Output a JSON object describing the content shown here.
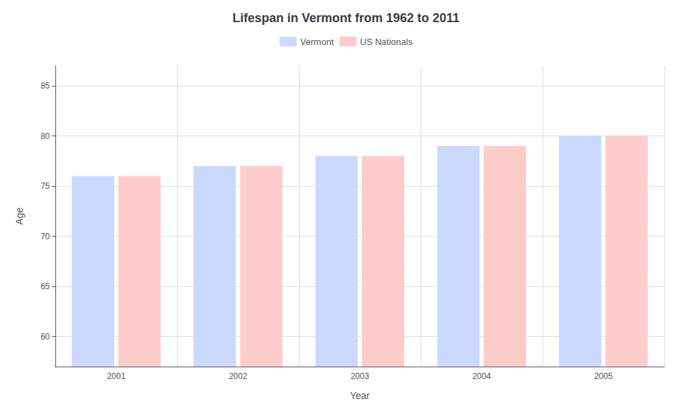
{
  "chart_data": {
    "type": "bar",
    "title": "Lifespan in Vermont from 1962 to 2011",
    "x_label": "Year",
    "y_label": "Age",
    "categories": [
      "2001",
      "2002",
      "2003",
      "2004",
      "2005"
    ],
    "series": [
      {
        "name": "Vermont",
        "color": "#ccd9ff",
        "values": [
          76,
          77,
          78,
          79,
          80
        ]
      },
      {
        "name": "US Nationals",
        "color": "#ffcccc",
        "values": [
          76,
          77,
          78,
          79,
          80
        ]
      }
    ],
    "ylim": [
      57,
      87
    ],
    "yticks": [
      60,
      65,
      70,
      75,
      80,
      85
    ],
    "grid": true,
    "legend": "top"
  }
}
